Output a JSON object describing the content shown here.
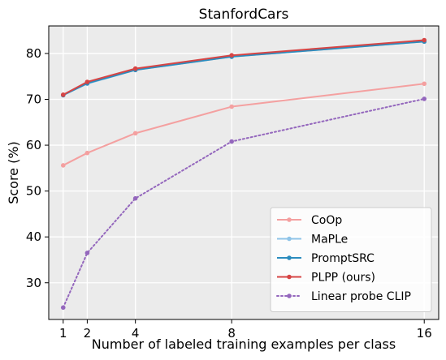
{
  "chart_data": {
    "type": "line",
    "title": "StanfordCars",
    "xlabel": "Number of labeled training examples per class",
    "ylabel": "Score (%)",
    "x": [
      1,
      2,
      4,
      8,
      16
    ],
    "x_ticks": [
      "1",
      "2",
      "4",
      "8",
      "16"
    ],
    "y_ticks": [
      30,
      40,
      50,
      60,
      70,
      80
    ],
    "xlim": [
      0.4,
      16.6
    ],
    "ylim": [
      22,
      86
    ],
    "grid": true,
    "legend_position": "bottom-right",
    "series": [
      {
        "name": "CoOp",
        "values": [
          55.6,
          58.3,
          62.6,
          68.4,
          73.4
        ],
        "color": "#f4a0a0",
        "style": "solid"
      },
      {
        "name": "MaPLe",
        "values": [
          70.9,
          73.4,
          76.4,
          79.3,
          82.6
        ],
        "color": "#8fc4e8",
        "style": "solid"
      },
      {
        "name": "PromptSRC",
        "values": [
          70.9,
          73.5,
          76.4,
          79.3,
          82.6
        ],
        "color": "#2b8cbe",
        "style": "solid"
      },
      {
        "name": "PLPP (ours)",
        "values": [
          71.0,
          73.8,
          76.7,
          79.6,
          82.9
        ],
        "color": "#d64545",
        "style": "solid"
      },
      {
        "name": "Linear probe CLIP",
        "values": [
          24.6,
          36.5,
          48.4,
          60.8,
          70.1
        ],
        "color": "#9467bd",
        "style": "dotted"
      }
    ]
  }
}
